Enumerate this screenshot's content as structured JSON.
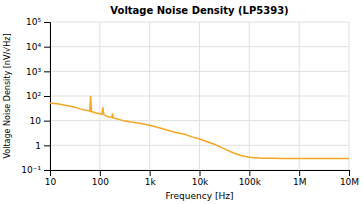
{
  "chart_data": {
    "type": "line",
    "title": "Voltage Noise Density (LP5393)",
    "xlabel": "Frequency [Hz]",
    "ylabel": "Voltage Noise Density [nV/√Hz]",
    "log": true,
    "grid": true,
    "color": "#F5A623",
    "xlim": [
      10,
      10000000
    ],
    "ylim": [
      0.1,
      100000
    ],
    "xticks": [
      10,
      100,
      {
        "value": 1000,
        "label": "1k"
      },
      {
        "value": 10000,
        "label": "10k"
      },
      {
        "value": 100000,
        "label": "100k"
      },
      {
        "value": 1000000,
        "label": "1M"
      },
      {
        "value": 10000000,
        "label": "10M"
      }
    ],
    "yticks": [
      {
        "value": 0.1,
        "label": "10⁻¹"
      },
      1,
      10,
      {
        "value": 100,
        "label": "10²"
      },
      {
        "value": 1000,
        "label": "10³"
      },
      {
        "value": 10000,
        "label": "10⁴"
      },
      {
        "value": 100000,
        "label": "10⁵"
      }
    ],
    "x": [
      10,
      12,
      15,
      18,
      20,
      25,
      30,
      35,
      40,
      50,
      55,
      60,
      63,
      65,
      68,
      70,
      75,
      80,
      90,
      100,
      110,
      115,
      120,
      125,
      130,
      140,
      150,
      160,
      175,
      180,
      185,
      190,
      200,
      250,
      300,
      400,
      500,
      700,
      1000,
      2000,
      3000,
      5000,
      7000,
      10000,
      20000,
      30000,
      50000,
      70000,
      100000,
      150000,
      200000,
      300000,
      500000,
      700000,
      1000000,
      2000000,
      5000000,
      10000000
    ],
    "values": [
      52,
      50,
      47,
      44,
      42,
      39,
      36,
      33,
      30,
      27,
      26,
      25,
      24,
      100,
      24,
      23,
      22,
      21,
      20,
      19,
      18,
      35,
      18,
      17,
      16,
      15,
      14.5,
      14,
      13.5,
      20,
      13,
      13,
      12.5,
      11,
      10,
      9,
      8.5,
      7.5,
      6.5,
      4.5,
      3.5,
      2.8,
      2.2,
      1.8,
      1.1,
      0.75,
      0.48,
      0.38,
      0.33,
      0.31,
      0.3,
      0.3,
      0.29,
      0.29,
      0.29,
      0.29,
      0.29,
      0.29
    ]
  }
}
